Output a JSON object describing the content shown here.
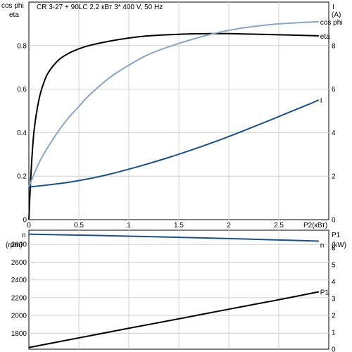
{
  "chart_data": [
    {
      "type": "line",
      "title": "CR 3-27 + 90LC    2.2 кВт   3* 400 V, 50 Hz",
      "xlabel": "P2(кВт)",
      "xlim": [
        0,
        3.0
      ],
      "xticks": [
        {
          "v": 0,
          "label": "0"
        },
        {
          "v": 0.5,
          "label": "0.5"
        },
        {
          "v": 1,
          "label": "1"
        },
        {
          "v": 1.5,
          "label": "1.5"
        },
        {
          "v": 2,
          "label": "2"
        },
        {
          "v": 2.5,
          "label": "2.5"
        }
      ],
      "y_left": {
        "labels": [
          "cos phi",
          "eta"
        ],
        "ylim": [
          0,
          1.0
        ],
        "ticks": [
          {
            "v": 0,
            "label": "0"
          },
          {
            "v": 0.2,
            "label": "0.2"
          },
          {
            "v": 0.4,
            "label": "0.4"
          },
          {
            "v": 0.6,
            "label": "0.6"
          },
          {
            "v": 0.8,
            "label": "0.8"
          }
        ]
      },
      "y_right": {
        "labels": [
          "I",
          "(A)"
        ],
        "ylim": [
          0,
          10
        ],
        "ticks": [
          {
            "v": 0,
            "label": "0"
          },
          {
            "v": 2,
            "label": "2"
          },
          {
            "v": 4,
            "label": "4"
          },
          {
            "v": 6,
            "label": "6"
          },
          {
            "v": 8,
            "label": "8"
          }
        ]
      },
      "grid": true,
      "series": [
        {
          "name": "eta",
          "axis": "left",
          "color": "#000000",
          "x": [
            0.0,
            0.02,
            0.05,
            0.1,
            0.15,
            0.2,
            0.3,
            0.4,
            0.5,
            0.6,
            0.8,
            1.0,
            1.2,
            1.5,
            1.8,
            2.0,
            2.2,
            2.5,
            2.9
          ],
          "y": [
            0.0,
            0.2,
            0.4,
            0.55,
            0.63,
            0.68,
            0.735,
            0.765,
            0.785,
            0.8,
            0.82,
            0.835,
            0.845,
            0.852,
            0.855,
            0.855,
            0.853,
            0.85,
            0.845
          ]
        },
        {
          "name": "cos phi",
          "axis": "left",
          "color": "#8aa5c2",
          "x": [
            0.0,
            0.1,
            0.2,
            0.3,
            0.4,
            0.5,
            0.6,
            0.8,
            1.0,
            1.2,
            1.5,
            1.8,
            2.0,
            2.2,
            2.5,
            2.9
          ],
          "y": [
            0.15,
            0.26,
            0.34,
            0.41,
            0.47,
            0.52,
            0.57,
            0.65,
            0.71,
            0.76,
            0.81,
            0.85,
            0.87,
            0.885,
            0.9,
            0.91
          ]
        },
        {
          "name": "I",
          "axis": "right",
          "color": "#1d4f80",
          "x": [
            0.0,
            0.2,
            0.4,
            0.6,
            0.8,
            1.0,
            1.2,
            1.4,
            1.6,
            1.8,
            2.0,
            2.2,
            2.4,
            2.6,
            2.8,
            2.9
          ],
          "y": [
            1.5,
            1.6,
            1.72,
            1.88,
            2.08,
            2.32,
            2.58,
            2.86,
            3.16,
            3.48,
            3.82,
            4.18,
            4.55,
            4.93,
            5.3,
            5.5
          ]
        }
      ]
    },
    {
      "type": "line",
      "xlim": [
        0,
        3.0
      ],
      "y_left": {
        "labels": [
          "n",
          "(rpm)"
        ],
        "ylim": [
          1620,
          2960
        ],
        "ticks": [
          {
            "v": 1800,
            "label": "1800"
          },
          {
            "v": 2000,
            "label": "2000"
          },
          {
            "v": 2200,
            "label": "2200"
          },
          {
            "v": 2400,
            "label": "2400"
          },
          {
            "v": 2600,
            "label": "2600"
          },
          {
            "v": 2800,
            "label": "2800"
          }
        ]
      },
      "y_right": {
        "labels": [
          "P1",
          "(kW)"
        ],
        "ylim": [
          0,
          7.05
        ],
        "ticks": [
          {
            "v": 0,
            "label": "0"
          },
          {
            "v": 1,
            "label": "1"
          },
          {
            "v": 2,
            "label": "2"
          },
          {
            "v": 3,
            "label": "3"
          },
          {
            "v": 4,
            "label": "4"
          },
          {
            "v": 5,
            "label": "5"
          },
          {
            "v": 6,
            "label": "6"
          }
        ]
      },
      "grid": true,
      "series": [
        {
          "name": "n",
          "axis": "left",
          "color": "#1d4f80",
          "x": [
            0.0,
            0.5,
            1.0,
            1.5,
            2.0,
            2.5,
            2.9
          ],
          "y": [
            2915,
            2905,
            2893,
            2880,
            2866,
            2850,
            2837
          ]
        },
        {
          "name": "P1",
          "axis": "right",
          "color": "#000000",
          "x": [
            0.0,
            0.5,
            1.0,
            1.5,
            2.0,
            2.5,
            2.9
          ],
          "y": [
            0.1,
            0.67,
            1.24,
            1.8,
            2.37,
            2.93,
            3.4
          ]
        }
      ]
    }
  ]
}
